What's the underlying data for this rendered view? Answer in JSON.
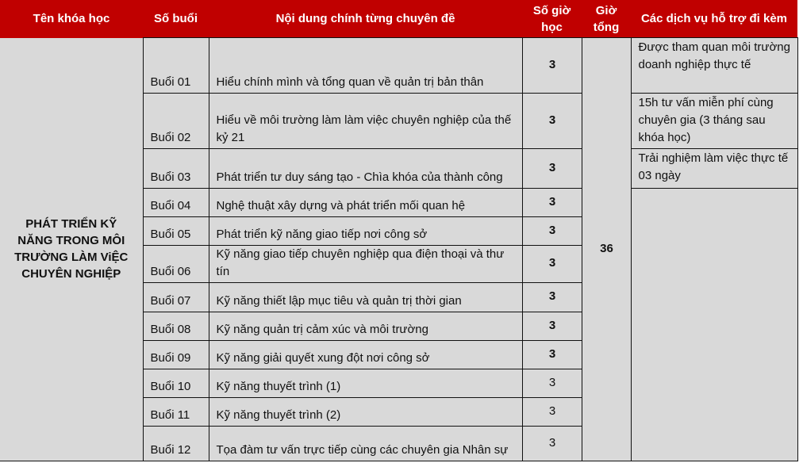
{
  "headers": {
    "course": "Tên khóa học",
    "sessions": "Số buổi",
    "content": "Nội dung chính từng chuyên đề",
    "hours": "Số giờ học",
    "total": "Giờ tổng",
    "services": "Các dịch vụ hỗ trợ  đi kèm"
  },
  "course_name": "PHÁT TRIỂN KỸ NĂNG TRONG MÔI TRƯỜNG LÀM ViỆC CHUYÊN NGHIỆP",
  "total_hours": "36",
  "rows": [
    {
      "session": "Buổi 01",
      "topic": "Hiểu chính mình và tổng quan về quản trị bản thân",
      "hours": "3"
    },
    {
      "session": "Buổi 02",
      "topic": "Hiểu về môi trường làm làm việc chuyên nghiệp của thế kỷ 21",
      "hours": "3"
    },
    {
      "session": "Buổi 03",
      "topic": "Phát triển tư duy sáng tạo - Chìa khóa của thành công",
      "hours": "3"
    },
    {
      "session": "Buổi 04",
      "topic": "Nghệ thuật xây dựng và phát triển mối quan hệ",
      "hours": "3"
    },
    {
      "session": "Buổi 05",
      "topic": "Phát triển kỹ năng giao tiếp nơi công sở",
      "hours": "3"
    },
    {
      "session": "Buổi 06",
      "topic": "Kỹ năng giao tiếp chuyên nghiệp qua điện thoại và thư tín",
      "hours": "3"
    },
    {
      "session": "Buổi 07",
      "topic": "Kỹ năng thiết lập mục tiêu và quản trị thời gian",
      "hours": "3"
    },
    {
      "session": "Buổi 08",
      "topic": "Kỹ năng quản trị cảm xúc và môi trường",
      "hours": "3"
    },
    {
      "session": "Buổi 09",
      "topic": "Kỹ năng giải quyết xung đột nơi công sở",
      "hours": "3"
    },
    {
      "session": "Buổi 10",
      "topic": "Kỹ năng thuyết trình (1)",
      "hours": "3"
    },
    {
      "session": "Buổi 11",
      "topic": "Kỹ năng thuyết trình (2)",
      "hours": "3"
    },
    {
      "session": "Buổi 12",
      "topic": "Tọa đàm tư  vấn trực tiếp cùng các  chuyên gia Nhân sự",
      "hours": "3"
    }
  ],
  "services": [
    "Được tham quan môi trường doanh nghiệp thực tế",
    "15h tư vấn miễn phí cùng chuyên gia (3 tháng sau khóa học)",
    "Trải nghiệm làm việc thực tế 03 ngày"
  ],
  "colors": {
    "header_bg": "#c00000",
    "cell_bg": "#d9d9d9"
  }
}
